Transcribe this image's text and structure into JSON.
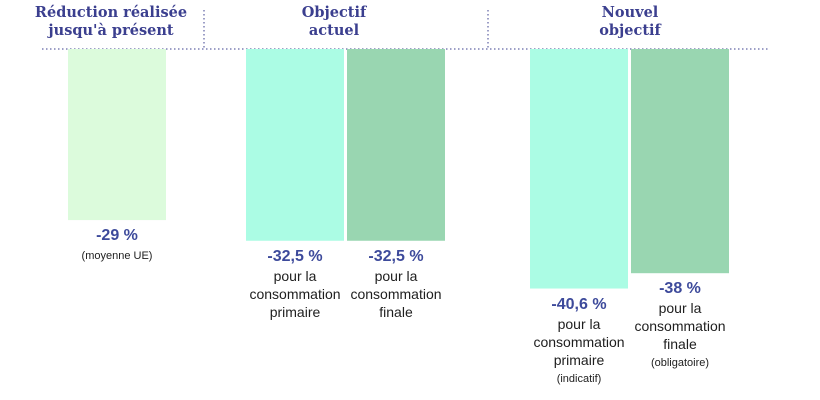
{
  "chart_data": {
    "type": "bar",
    "colors": {
      "realise": "#dcfbdc",
      "primaire": "#abfce4",
      "finale": "#99d6b1",
      "header_text": "#3b3f8f",
      "value_text": "#3d4a9b",
      "divider": "#3b3f8f"
    },
    "groups": [
      {
        "title_lines": [
          "Réduction réalisée",
          "jusqu'à présent"
        ]
      },
      {
        "title_lines": [
          "Objectif",
          "actuel"
        ]
      },
      {
        "title_lines": [
          "Nouvel",
          "objectif"
        ]
      }
    ],
    "bars": [
      {
        "group": 0,
        "value": -29,
        "value_label": "-29 %",
        "desc_lines": [],
        "note": "(moyenne UE)",
        "color_key": "realise"
      },
      {
        "group": 1,
        "value": -32.5,
        "value_label": "-32,5 %",
        "desc_lines": [
          "pour la",
          "consommation",
          "primaire"
        ],
        "note": "",
        "color_key": "primaire"
      },
      {
        "group": 1,
        "value": -32.5,
        "value_label": "-32,5 %",
        "desc_lines": [
          "pour la",
          "consommation",
          "finale"
        ],
        "note": "",
        "color_key": "finale"
      },
      {
        "group": 2,
        "value": -40.6,
        "value_label": "-40,6 %",
        "desc_lines": [
          "pour la",
          "consommation",
          "primaire"
        ],
        "note": "(indicatif)",
        "color_key": "primaire"
      },
      {
        "group": 2,
        "value": -38,
        "value_label": "-38 %",
        "desc_lines": [
          "pour la",
          "consommation",
          "finale"
        ],
        "note": "(obligatoire)",
        "color_key": "finale"
      }
    ]
  }
}
